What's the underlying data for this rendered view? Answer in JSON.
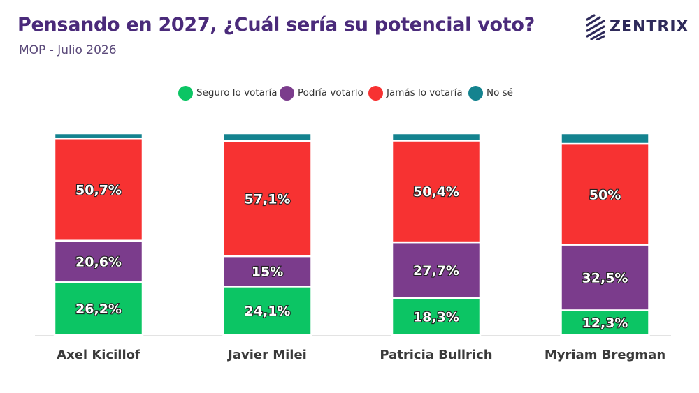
{
  "header": {
    "title": "Pensando en 2027, ¿Cuál sería su potencial voto?",
    "subtitle": "MOP - Julio 2026"
  },
  "logo": {
    "text": "ZENTRIX",
    "icon": "zentrix-logo-icon"
  },
  "colors": {
    "seguro": "#0cc564",
    "podria": "#7b3c8c",
    "jamas": "#f73232",
    "nose": "#14838f",
    "title": "#4a2a7a"
  },
  "chart_data": {
    "type": "bar",
    "stacked": true,
    "orientation": "vertical",
    "categories": [
      "Axel Kicillof",
      "Javier Milei",
      "Patricia Bullrich",
      "Myriam Bregman"
    ],
    "series": [
      {
        "name": "Seguro lo votaría",
        "values": [
          26.2,
          24.1,
          18.3,
          12.3
        ],
        "labels": [
          "26,2%",
          "24,1%",
          "18,3%",
          "12,3%"
        ]
      },
      {
        "name": "Podría votarlo",
        "values": [
          20.6,
          15,
          27.7,
          32.5
        ],
        "labels": [
          "20,6%",
          "15%",
          "27,7%",
          "32,5%"
        ]
      },
      {
        "name": "Jamás lo votaría",
        "values": [
          50.7,
          57.1,
          50.4,
          50
        ],
        "labels": [
          "50,7%",
          "57,1%",
          "50,4%",
          "50%"
        ]
      },
      {
        "name": "No sé",
        "values": [
          2.5,
          3.8,
          3.6,
          5.2
        ],
        "labels": [
          "",
          "",
          "",
          ""
        ]
      }
    ],
    "ylim": [
      0,
      100
    ],
    "legend_position": "top-center",
    "grid": false
  }
}
